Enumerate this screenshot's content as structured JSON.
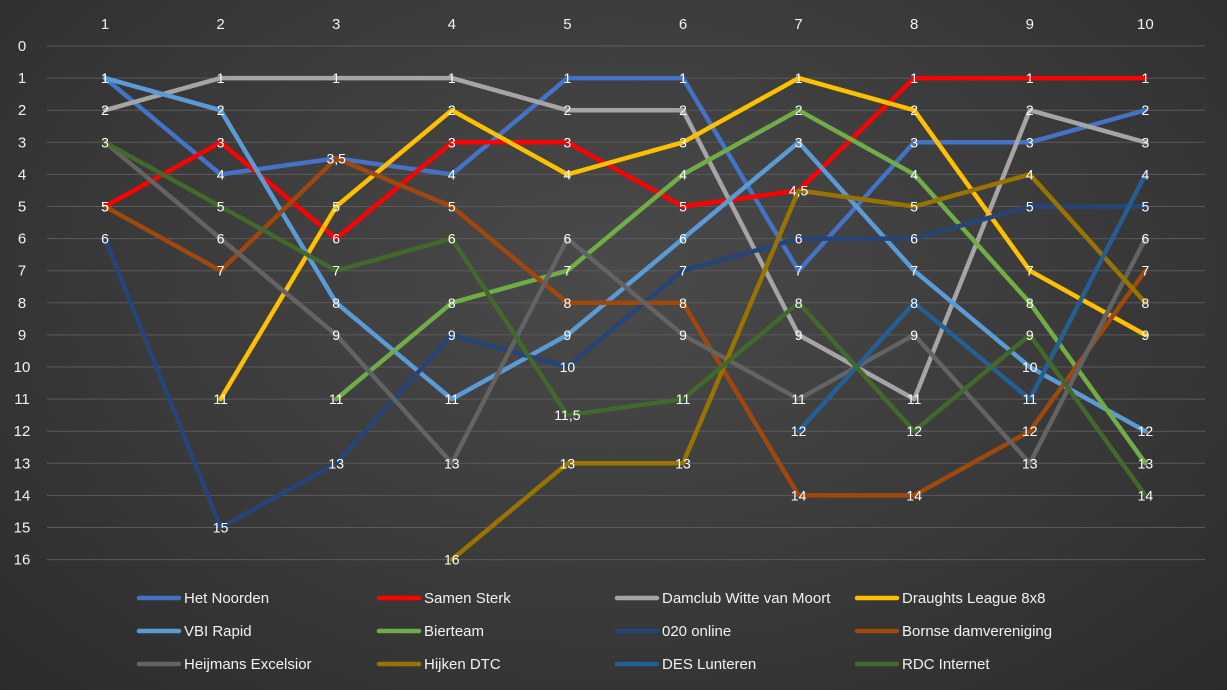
{
  "chart_data": {
    "type": "line",
    "x": [
      1,
      2,
      3,
      4,
      5,
      6,
      7,
      8,
      9,
      10
    ],
    "x_tick_labels": [
      "1",
      "2",
      "3",
      "4",
      "5",
      "6",
      "7",
      "8",
      "9",
      "10"
    ],
    "y_tick_labels": [
      "0",
      "1",
      "2",
      "3",
      "4",
      "5",
      "6",
      "7",
      "8",
      "9",
      "10",
      "11",
      "12",
      "13",
      "14",
      "15",
      "16"
    ],
    "ylim": [
      0,
      16
    ],
    "y_inverted": true,
    "x_axis_position": "top",
    "grid": true,
    "legend_position": "bottom",
    "series": [
      {
        "name": "Het Noorden",
        "color": "#4472c4",
        "values": [
          1,
          4,
          3.5,
          4,
          1,
          1,
          7,
          3,
          3,
          2
        ],
        "labels": [
          "1",
          "4",
          "",
          "4",
          "1",
          "1",
          "7",
          "3",
          "3",
          "2"
        ]
      },
      {
        "name": "Samen Sterk",
        "color": "#ff0000",
        "values": [
          5,
          3,
          6,
          3,
          3,
          5,
          4.5,
          1,
          1,
          1
        ],
        "labels": [
          "5",
          "3",
          "6",
          "3",
          "3",
          "5",
          "",
          "1",
          "1",
          "1"
        ]
      },
      {
        "name": "Damclub Witte van Moort",
        "color": "#a5a5a5",
        "values": [
          2,
          1,
          1,
          1,
          2,
          2,
          9,
          11,
          2,
          3
        ],
        "labels": [
          "2",
          "1",
          "1",
          "1",
          "2",
          "2",
          "9",
          "11",
          "2",
          "3"
        ]
      },
      {
        "name": "Draughts League 8x8",
        "color": "#ffc000",
        "values": [
          null,
          11,
          5,
          2,
          4,
          3,
          1,
          2,
          7,
          9
        ],
        "labels": [
          "",
          "11",
          "5",
          "2",
          "4",
          "3",
          "1",
          "2",
          "7",
          "9"
        ]
      },
      {
        "name": "VBI Rapid",
        "color": "#5b9bd5",
        "values": [
          1,
          2,
          8,
          11,
          9,
          6,
          3,
          7,
          10,
          12
        ],
        "labels": [
          "1",
          "2",
          "8",
          "11",
          "9",
          "6",
          "3",
          "7",
          "10",
          "12"
        ]
      },
      {
        "name": "Bierteam",
        "color": "#70ad47",
        "values": [
          null,
          null,
          11,
          8,
          7,
          4,
          2,
          4,
          8,
          13
        ],
        "labels": [
          "",
          "",
          "11",
          "8",
          "7",
          "4",
          "2",
          "4",
          "8",
          "13"
        ]
      },
      {
        "name": "020 online",
        "color": "#264478",
        "values": [
          6,
          15,
          13,
          9,
          10,
          7,
          6,
          6,
          5,
          5
        ],
        "labels": [
          "6",
          "15",
          "13",
          "9",
          "10",
          "7",
          "6",
          "6",
          "5",
          "5"
        ]
      },
      {
        "name": "Bornse damvereniging",
        "color": "#9e480e",
        "values": [
          5,
          7,
          3.5,
          5,
          8,
          8,
          14,
          14,
          12,
          7
        ],
        "labels": [
          "5",
          "7",
          "3,5",
          "5",
          "8",
          "8",
          "14",
          "14",
          "12",
          "7"
        ]
      },
      {
        "name": "Heijmans Excelsior",
        "color": "#636363",
        "values": [
          3,
          6,
          9,
          13,
          6,
          9,
          11,
          9,
          13,
          6
        ],
        "labels": [
          "3",
          "6",
          "9",
          "13",
          "6",
          "9",
          "11",
          "9",
          "13",
          "6"
        ]
      },
      {
        "name": "Hijken DTC",
        "color": "#997300",
        "values": [
          null,
          null,
          null,
          16,
          13,
          13,
          4.5,
          5,
          4,
          8
        ],
        "labels": [
          "",
          "",
          "",
          "16",
          "13",
          "13",
          "4,5",
          "5",
          "4",
          "8"
        ]
      },
      {
        "name": "DES Lunteren",
        "color": "#255e91",
        "values": [
          null,
          null,
          null,
          null,
          null,
          null,
          12,
          8,
          11,
          4
        ],
        "labels": [
          "",
          "",
          "",
          "",
          "",
          "",
          "12",
          "8",
          "11",
          "4"
        ]
      },
      {
        "name": "RDC Internet",
        "color": "#43682b",
        "values": [
          3,
          5,
          7,
          6,
          11.5,
          11,
          8,
          12,
          9,
          14
        ],
        "labels": [
          "",
          "5",
          "7",
          "6",
          "11,5",
          "11",
          "8",
          "12",
          "9",
          "14"
        ]
      }
    ]
  }
}
